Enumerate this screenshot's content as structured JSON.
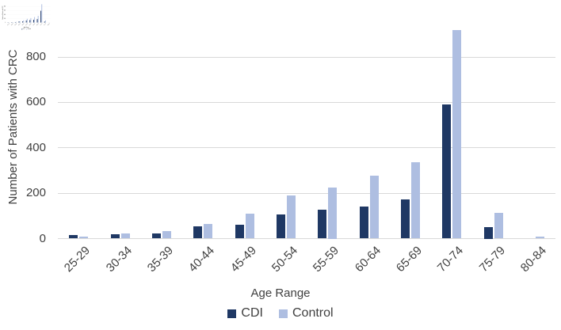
{
  "chart_data": {
    "type": "bar",
    "title": "",
    "categories": [
      "25-29",
      "30-34",
      "35-39",
      "40-44",
      "45-49",
      "50-54",
      "55-59",
      "60-64",
      "65-69",
      "70-74",
      "75-79",
      "80-84"
    ],
    "series": [
      {
        "name": "CDI",
        "color": "#1F3864",
        "values": [
          15,
          20,
          22,
          55,
          62,
          105,
          128,
          140,
          172,
          590,
          50,
          0
        ]
      },
      {
        "name": "Control",
        "color": "#AEBEE1",
        "values": [
          8,
          22,
          32,
          65,
          110,
          190,
          225,
          278,
          335,
          920,
          115,
          10
        ]
      }
    ],
    "xlabel": "Age Range",
    "ylabel": "Number of Patients with CRC",
    "yticks": [
      0,
      200,
      400,
      600,
      800
    ],
    "ylim": [
      0,
      950
    ],
    "grid": "horizontal",
    "legend_position": "bottom",
    "gridline_color": "#D9D9D9",
    "text_color": "#404040"
  }
}
